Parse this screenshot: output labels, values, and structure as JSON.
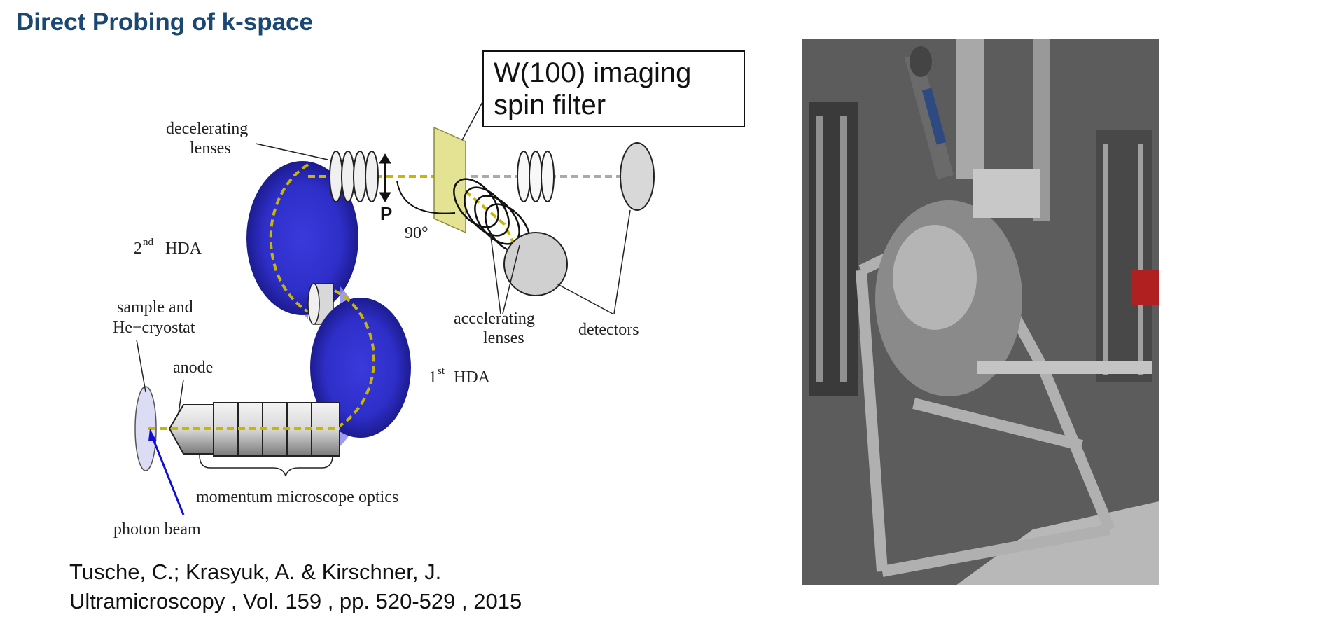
{
  "page": {
    "title": "Direct Probing of k-space"
  },
  "diagram": {
    "filter_box": {
      "line1": "W(100) imaging",
      "line2": "spin filter"
    },
    "labels": {
      "decel_1": "decelerating",
      "decel_2": "lenses",
      "hda2": "HDA",
      "hda2_sup": "nd",
      "hda2_num": "2",
      "hda1": "HDA",
      "hda1_sup": "st",
      "hda1_num": "1",
      "sample_1": "sample and",
      "sample_2": "He−cryostat",
      "anode": "anode",
      "optics": "momentum microscope optics",
      "photon": "photon beam",
      "accel_1": "accelerating",
      "accel_2": "lenses",
      "detectors": "detectors",
      "p": "P",
      "angle": "90°"
    }
  },
  "citation": {
    "line1": "Tusche, C.; Krasyuk, A. & Kirschner, J.",
    "line2": "Ultramicroscopy , Vol. 159 , pp. 520-529 , 2015"
  }
}
